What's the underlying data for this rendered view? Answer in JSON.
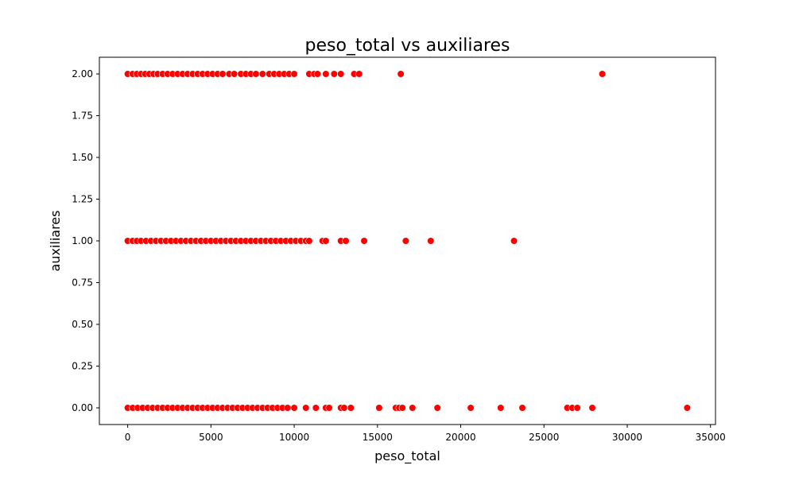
{
  "chart_data": {
    "type": "scatter",
    "title": "peso_total vs auxiliares",
    "xlabel": "peso_total",
    "ylabel": "auxiliares",
    "xlim": [
      -1700,
      35300
    ],
    "ylim": [
      -0.1,
      2.1
    ],
    "x_ticks": [
      0,
      5000,
      10000,
      15000,
      20000,
      25000,
      30000,
      35000
    ],
    "x_tick_labels": [
      "0",
      "5000",
      "10000",
      "15000",
      "20000",
      "25000",
      "30000",
      "35000"
    ],
    "y_ticks": [
      0.0,
      0.25,
      0.5,
      0.75,
      1.0,
      1.25,
      1.5,
      1.75,
      2.0
    ],
    "y_tick_labels": [
      "0.00",
      "0.25",
      "0.50",
      "0.75",
      "1.00",
      "1.25",
      "1.50",
      "1.75",
      "2.00"
    ],
    "grid": false,
    "point_color": "#ff0000",
    "points": [
      {
        "x": 0,
        "y": 2
      },
      {
        "x": 300,
        "y": 2
      },
      {
        "x": 550,
        "y": 2
      },
      {
        "x": 800,
        "y": 2
      },
      {
        "x": 1050,
        "y": 2
      },
      {
        "x": 1300,
        "y": 2
      },
      {
        "x": 1550,
        "y": 2
      },
      {
        "x": 1800,
        "y": 2
      },
      {
        "x": 2100,
        "y": 2
      },
      {
        "x": 2400,
        "y": 2
      },
      {
        "x": 2700,
        "y": 2
      },
      {
        "x": 3000,
        "y": 2
      },
      {
        "x": 3300,
        "y": 2
      },
      {
        "x": 3600,
        "y": 2
      },
      {
        "x": 3900,
        "y": 2
      },
      {
        "x": 4200,
        "y": 2
      },
      {
        "x": 4500,
        "y": 2
      },
      {
        "x": 4800,
        "y": 2
      },
      {
        "x": 5100,
        "y": 2
      },
      {
        "x": 5400,
        "y": 2
      },
      {
        "x": 5700,
        "y": 2
      },
      {
        "x": 6100,
        "y": 2
      },
      {
        "x": 6400,
        "y": 2
      },
      {
        "x": 6800,
        "y": 2
      },
      {
        "x": 7100,
        "y": 2
      },
      {
        "x": 7400,
        "y": 2
      },
      {
        "x": 7700,
        "y": 2
      },
      {
        "x": 8100,
        "y": 2
      },
      {
        "x": 8500,
        "y": 2
      },
      {
        "x": 8800,
        "y": 2
      },
      {
        "x": 9100,
        "y": 2
      },
      {
        "x": 9400,
        "y": 2
      },
      {
        "x": 9700,
        "y": 2
      },
      {
        "x": 10000,
        "y": 2
      },
      {
        "x": 10900,
        "y": 2
      },
      {
        "x": 11200,
        "y": 2
      },
      {
        "x": 11400,
        "y": 2
      },
      {
        "x": 11900,
        "y": 2
      },
      {
        "x": 12400,
        "y": 2
      },
      {
        "x": 12800,
        "y": 2
      },
      {
        "x": 13600,
        "y": 2
      },
      {
        "x": 13900,
        "y": 2
      },
      {
        "x": 16400,
        "y": 2
      },
      {
        "x": 28500,
        "y": 2
      },
      {
        "x": 0,
        "y": 1
      },
      {
        "x": 300,
        "y": 1
      },
      {
        "x": 550,
        "y": 1
      },
      {
        "x": 800,
        "y": 1
      },
      {
        "x": 1100,
        "y": 1
      },
      {
        "x": 1400,
        "y": 1
      },
      {
        "x": 1700,
        "y": 1
      },
      {
        "x": 2000,
        "y": 1
      },
      {
        "x": 2300,
        "y": 1
      },
      {
        "x": 2600,
        "y": 1
      },
      {
        "x": 2900,
        "y": 1
      },
      {
        "x": 3200,
        "y": 1
      },
      {
        "x": 3500,
        "y": 1
      },
      {
        "x": 3800,
        "y": 1
      },
      {
        "x": 4100,
        "y": 1
      },
      {
        "x": 4400,
        "y": 1
      },
      {
        "x": 4700,
        "y": 1
      },
      {
        "x": 5000,
        "y": 1
      },
      {
        "x": 5300,
        "y": 1
      },
      {
        "x": 5600,
        "y": 1
      },
      {
        "x": 5900,
        "y": 1
      },
      {
        "x": 6200,
        "y": 1
      },
      {
        "x": 6500,
        "y": 1
      },
      {
        "x": 6800,
        "y": 1
      },
      {
        "x": 7100,
        "y": 1
      },
      {
        "x": 7400,
        "y": 1
      },
      {
        "x": 7700,
        "y": 1
      },
      {
        "x": 8000,
        "y": 1
      },
      {
        "x": 8300,
        "y": 1
      },
      {
        "x": 8600,
        "y": 1
      },
      {
        "x": 8900,
        "y": 1
      },
      {
        "x": 9200,
        "y": 1
      },
      {
        "x": 9500,
        "y": 1
      },
      {
        "x": 9800,
        "y": 1
      },
      {
        "x": 10100,
        "y": 1
      },
      {
        "x": 10400,
        "y": 1
      },
      {
        "x": 10700,
        "y": 1
      },
      {
        "x": 10900,
        "y": 1
      },
      {
        "x": 11700,
        "y": 1
      },
      {
        "x": 11900,
        "y": 1
      },
      {
        "x": 12800,
        "y": 1
      },
      {
        "x": 13100,
        "y": 1
      },
      {
        "x": 14200,
        "y": 1
      },
      {
        "x": 16700,
        "y": 1
      },
      {
        "x": 18200,
        "y": 1
      },
      {
        "x": 23200,
        "y": 1
      },
      {
        "x": 0,
        "y": 0
      },
      {
        "x": 300,
        "y": 0
      },
      {
        "x": 600,
        "y": 0
      },
      {
        "x": 900,
        "y": 0
      },
      {
        "x": 1200,
        "y": 0
      },
      {
        "x": 1500,
        "y": 0
      },
      {
        "x": 1800,
        "y": 0
      },
      {
        "x": 2100,
        "y": 0
      },
      {
        "x": 2400,
        "y": 0
      },
      {
        "x": 2700,
        "y": 0
      },
      {
        "x": 3000,
        "y": 0
      },
      {
        "x": 3300,
        "y": 0
      },
      {
        "x": 3600,
        "y": 0
      },
      {
        "x": 3900,
        "y": 0
      },
      {
        "x": 4200,
        "y": 0
      },
      {
        "x": 4500,
        "y": 0
      },
      {
        "x": 4800,
        "y": 0
      },
      {
        "x": 5100,
        "y": 0
      },
      {
        "x": 5400,
        "y": 0
      },
      {
        "x": 5700,
        "y": 0
      },
      {
        "x": 6000,
        "y": 0
      },
      {
        "x": 6300,
        "y": 0
      },
      {
        "x": 6600,
        "y": 0
      },
      {
        "x": 6900,
        "y": 0
      },
      {
        "x": 7200,
        "y": 0
      },
      {
        "x": 7500,
        "y": 0
      },
      {
        "x": 7800,
        "y": 0
      },
      {
        "x": 8100,
        "y": 0
      },
      {
        "x": 8400,
        "y": 0
      },
      {
        "x": 8700,
        "y": 0
      },
      {
        "x": 9000,
        "y": 0
      },
      {
        "x": 9300,
        "y": 0
      },
      {
        "x": 9600,
        "y": 0
      },
      {
        "x": 10000,
        "y": 0
      },
      {
        "x": 10700,
        "y": 0
      },
      {
        "x": 11300,
        "y": 0
      },
      {
        "x": 11900,
        "y": 0
      },
      {
        "x": 12100,
        "y": 0
      },
      {
        "x": 12800,
        "y": 0
      },
      {
        "x": 13000,
        "y": 0
      },
      {
        "x": 13400,
        "y": 0
      },
      {
        "x": 15100,
        "y": 0
      },
      {
        "x": 16100,
        "y": 0
      },
      {
        "x": 16300,
        "y": 0
      },
      {
        "x": 16500,
        "y": 0
      },
      {
        "x": 17100,
        "y": 0
      },
      {
        "x": 18600,
        "y": 0
      },
      {
        "x": 20600,
        "y": 0
      },
      {
        "x": 22400,
        "y": 0
      },
      {
        "x": 23700,
        "y": 0
      },
      {
        "x": 26400,
        "y": 0
      },
      {
        "x": 26700,
        "y": 0
      },
      {
        "x": 27000,
        "y": 0
      },
      {
        "x": 27900,
        "y": 0
      },
      {
        "x": 33600,
        "y": 0
      }
    ]
  }
}
